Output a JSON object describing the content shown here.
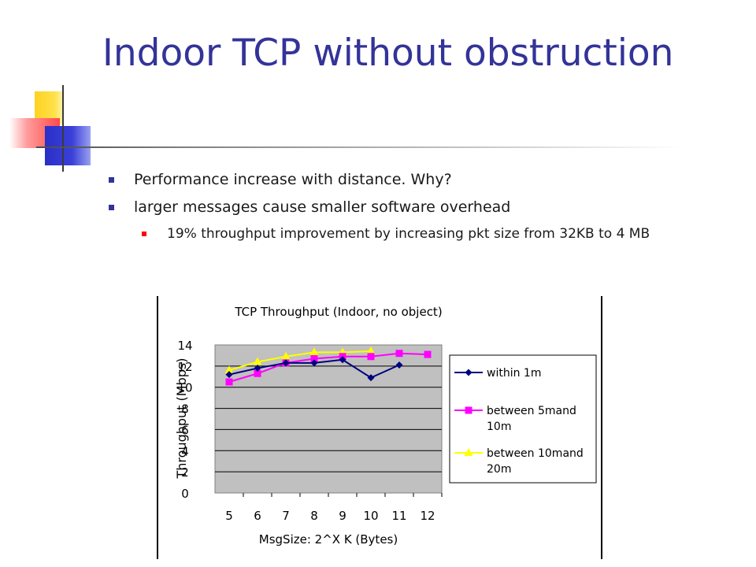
{
  "slide": {
    "title": "Indoor TCP without obstruction",
    "bullets": [
      {
        "text": "Performance increase with distance. Why?"
      },
      {
        "text": "larger messages cause smaller software overhead",
        "sub": [
          "19% throughput improvement by increasing pkt size from 32KB to 4 MB"
        ]
      }
    ]
  },
  "colors": {
    "title": "#333399",
    "bullet_primary": "#333399",
    "bullet_secondary": "#ff0000",
    "plot_background": "#c0c0c0",
    "series_within_1m": "#000080",
    "series_5_10m": "#ff00ff",
    "series_10_20m": "#ffff00"
  },
  "chart_data": {
    "type": "line",
    "title": "TCP Throughput (Indoor, no object)",
    "xlabel": "MsgSize: 2^X K (Bytes)",
    "ylabel": "Throughput (Mbps)",
    "categories": [
      "5",
      "6",
      "7",
      "8",
      "9",
      "10",
      "11",
      "12"
    ],
    "ylim": [
      0,
      14
    ],
    "yticks": [
      "0",
      "2",
      "4",
      "6",
      "8",
      "10",
      "12",
      "14"
    ],
    "grid": true,
    "legend_position": "right",
    "series": [
      {
        "name": "within 1m",
        "marker": "diamond",
        "color": "#000080",
        "values": [
          11.2,
          11.8,
          12.3,
          12.3,
          12.6,
          10.9,
          12.1,
          null
        ]
      },
      {
        "name": "between 5mand 10m",
        "marker": "square",
        "color": "#ff00ff",
        "values": [
          10.5,
          11.3,
          12.3,
          12.7,
          12.9,
          12.9,
          13.2,
          13.1
        ]
      },
      {
        "name": "between 10mand 20m",
        "marker": "triangle",
        "color": "#ffff00",
        "values": [
          11.6,
          12.4,
          12.9,
          13.3,
          13.3,
          13.4,
          null,
          null
        ]
      }
    ]
  }
}
